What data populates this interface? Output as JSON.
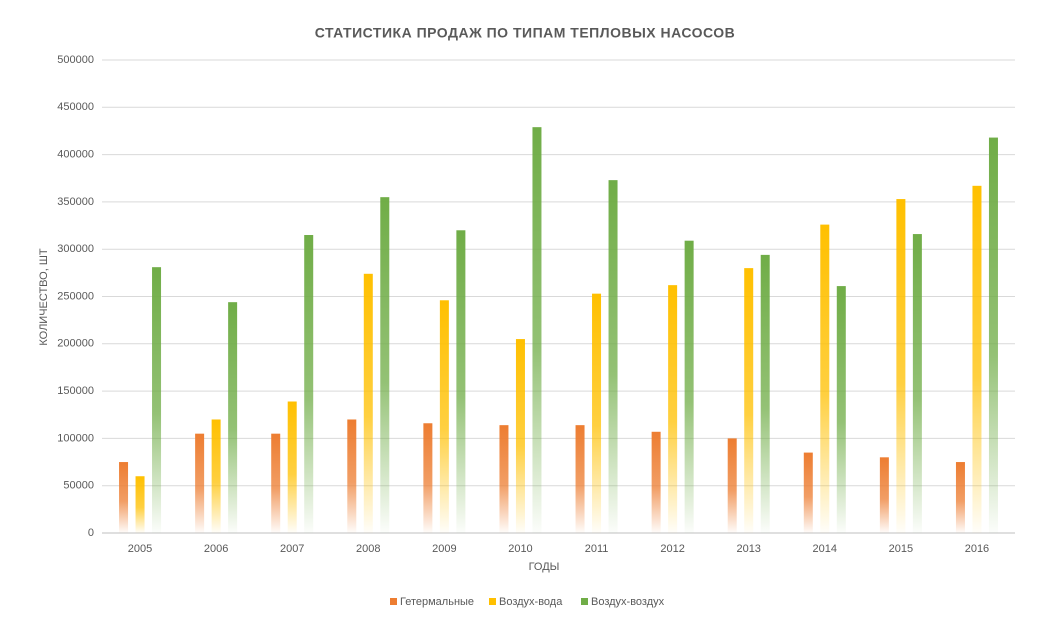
{
  "chart_data": {
    "type": "bar",
    "title": "СТАТИСТИКА ПРОДАЖ ПО ТИПАМ ТЕПЛОВЫХ НАСОСОВ",
    "x_label": "ГОДЫ",
    "y_label": "КОЛИЧЕСТВО, ШТ",
    "categories": [
      "2005",
      "2006",
      "2007",
      "2008",
      "2009",
      "2010",
      "2011",
      "2012",
      "2013",
      "2014",
      "2015",
      "2016"
    ],
    "series": [
      {
        "name": "Гетермальные",
        "color": "#ed7d31",
        "values": [
          75000,
          105000,
          105000,
          120000,
          116000,
          114000,
          114000,
          107000,
          100000,
          85000,
          80000,
          75000
        ]
      },
      {
        "name": "Воздух-вода",
        "color": "#ffc000",
        "values": [
          60000,
          120000,
          139000,
          274000,
          246000,
          205000,
          253000,
          262000,
          280000,
          326000,
          353000,
          367000
        ]
      },
      {
        "name": "Воздух-воздух",
        "color": "#70ad47",
        "values": [
          281000,
          244000,
          315000,
          355000,
          320000,
          429000,
          373000,
          309000,
          294000,
          261000,
          316000,
          418000
        ]
      }
    ],
    "ylim": [
      0,
      500000
    ],
    "yticks": [
      0,
      50000,
      100000,
      150000,
      200000,
      250000,
      300000,
      350000,
      400000,
      450000,
      500000
    ],
    "grid": true,
    "legend": "bottom"
  }
}
